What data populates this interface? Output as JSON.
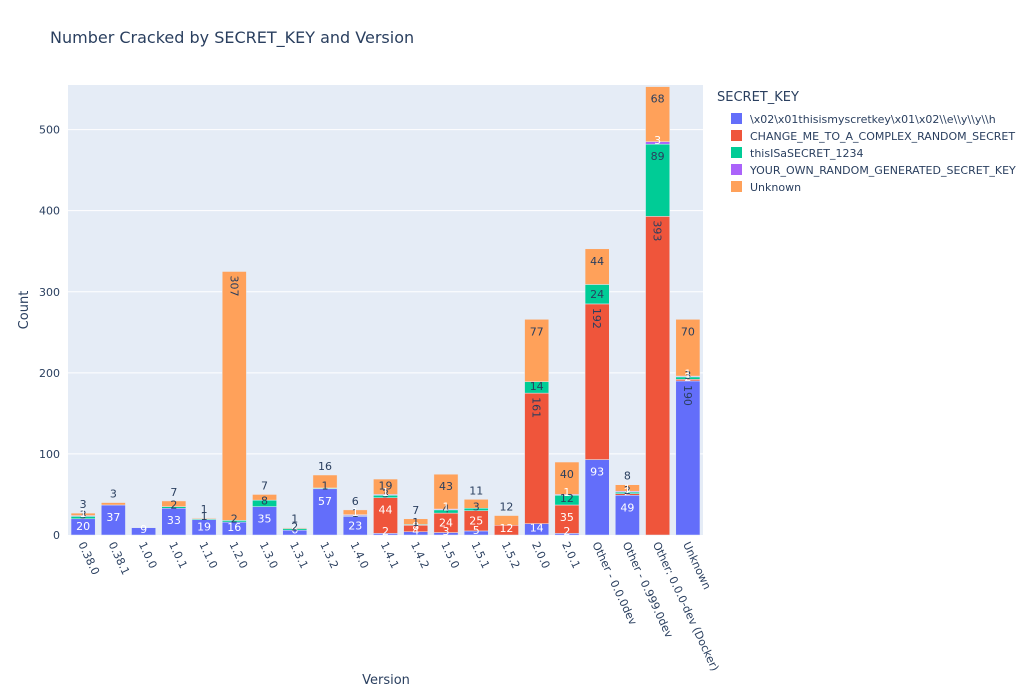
{
  "chart_data": {
    "type": "bar",
    "stacked": true,
    "title": "Number Cracked by SECRET_KEY and Version",
    "xlabel": "Version",
    "ylabel": "Count",
    "ylim": [
      0,
      555
    ],
    "yticks": [
      0,
      100,
      200,
      300,
      400,
      500
    ],
    "grid": true,
    "legend_title": "SECRET_KEY",
    "legend_position": "right",
    "categories": [
      "0.38.0",
      "0.38.1",
      "1.0.0",
      "1.0.1",
      "1.1.0",
      "1.2.0",
      "1.3.0",
      "1.3.1",
      "1.3.2",
      "1.4.0",
      "1.4.1",
      "1.4.2",
      "1.5.0",
      "1.5.1",
      "1.5.2",
      "2.0.0",
      "2.0.1",
      "Other - 0.0.0dev",
      "Other - 0.999.0dev",
      "Other: 0.0.0-dev (Docker)",
      "Unknown"
    ],
    "series": [
      {
        "name": "\\x02\\x01thisismyscretkey\\x01\\x02\\\\e\\\\y\\\\y\\\\h",
        "color": "#636efa",
        "values": [
          20,
          37,
          9,
          33,
          19,
          16,
          35,
          6,
          57,
          23,
          2,
          4,
          3,
          5,
          0,
          14,
          2,
          93,
          49,
          0,
          190
        ]
      },
      {
        "name": "CHANGE_ME_TO_A_COMPLEX_RANDOM_SECRET",
        "color": "#ef553b",
        "values": [
          0,
          0,
          0,
          0,
          0,
          0,
          0,
          0,
          0,
          0,
          44,
          8,
          24,
          25,
          12,
          161,
          35,
          192,
          2,
          393,
          2
        ]
      },
      {
        "name": "thisISaSECRET_1234",
        "color": "#00cc96",
        "values": [
          3,
          0,
          0,
          2,
          1,
          2,
          8,
          2,
          1,
          1,
          3,
          1,
          4,
          3,
          0,
          14,
          12,
          24,
          2,
          89,
          3
        ]
      },
      {
        "name": "YOUR_OWN_RANDOM_GENERATED_SECRET_KEY",
        "color": "#ab63fa",
        "values": [
          1,
          0,
          0,
          0,
          0,
          0,
          0,
          0,
          0,
          1,
          1,
          0,
          1,
          0,
          0,
          0,
          1,
          0,
          1,
          3,
          1
        ]
      },
      {
        "name": "Unknown",
        "color": "#ffa15a",
        "values": [
          3,
          3,
          0,
          7,
          1,
          307,
          7,
          1,
          16,
          6,
          19,
          7,
          43,
          11,
          12,
          77,
          40,
          44,
          8,
          68,
          70
        ]
      }
    ],
    "labels": [
      [
        "20",
        "37",
        "9",
        "33",
        "19",
        "16",
        "35",
        "6",
        "57",
        "23",
        "2",
        "4",
        "3",
        "5",
        "",
        "14",
        "2",
        "93",
        "49",
        "",
        "190"
      ],
      [
        "",
        "",
        "",
        "",
        "",
        "",
        "",
        "",
        "",
        "",
        "44",
        "8",
        "24",
        "25",
        "12",
        "161",
        "35",
        "192",
        "2",
        "393",
        "2"
      ],
      [
        "3",
        "",
        "",
        "2",
        "1",
        "2",
        "8",
        "2",
        "1",
        "1",
        "3",
        "1",
        "4",
        "3",
        "",
        "14",
        "12",
        "24",
        "2",
        "89",
        "3"
      ],
      [
        "1",
        "",
        "",
        "",
        "",
        "",
        "",
        "",
        "",
        "1",
        "1",
        "",
        "1",
        "",
        "",
        "",
        "1",
        "",
        "1",
        "3",
        "1"
      ],
      [
        "3",
        "3",
        "",
        "7",
        "1",
        "307",
        "7",
        "1",
        "16",
        "6",
        "19",
        "7",
        "43",
        "11",
        "12",
        "77",
        "40",
        "44",
        "8",
        "68",
        "70"
      ]
    ]
  }
}
